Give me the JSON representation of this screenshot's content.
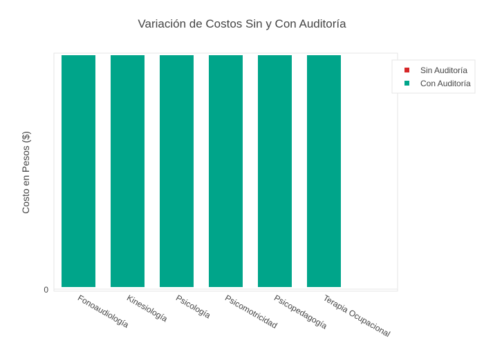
{
  "chart_data": {
    "type": "bar",
    "title": "Variación de Costos Sin y Con Auditoría",
    "xlabel": "",
    "ylabel": "Costo en Pesos ($)",
    "categories": [
      "Fonoaudiología",
      "Kinesiología",
      "Psicología",
      "Psicomotricidad",
      "Psicopedagogía",
      "Terapia Ocupacional"
    ],
    "series": [
      {
        "name": "Sin Auditoría",
        "color": "#d62728",
        "values": [
          0,
          0,
          0,
          0,
          0,
          0
        ]
      },
      {
        "name": "Con Auditoría",
        "color": "#00a58a",
        "values": [
          1,
          1,
          1,
          1,
          1,
          1
        ]
      }
    ],
    "yticks": [
      "0"
    ],
    "ylim": [
      0,
      1
    ],
    "grid": false,
    "legend_position": "top-right"
  }
}
